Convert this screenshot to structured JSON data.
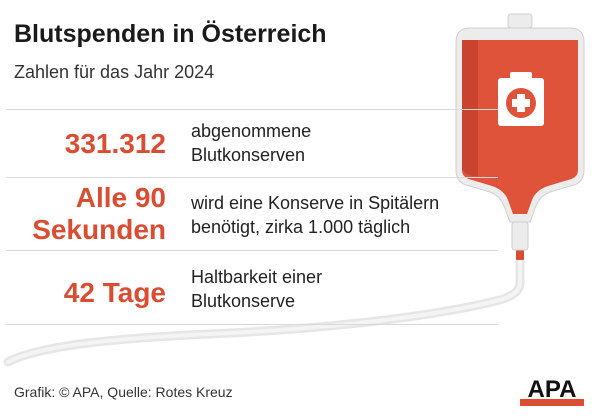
{
  "title": "Blutspenden in Österreich",
  "subtitle": "Zahlen für das Jahr 2024",
  "stats": [
    {
      "value": "331.312",
      "desc_line1": "abgenommene",
      "desc_line2": "Blutkonserven"
    },
    {
      "value_line1": "Alle 90",
      "value_line2": "Sekunden",
      "desc_line1": "wird eine Konserve in Spitälern",
      "desc_line2": "benötigt, zirka 1.000 täglich"
    },
    {
      "value": "42 Tage",
      "desc_line1": "Haltbarkeit einer",
      "desc_line2": "Blutkonserve"
    }
  ],
  "source": "Grafik: © APA, Quelle: Rotes Kreuz",
  "logo": "APA",
  "colors": {
    "accent": "#d94d33",
    "bag_red": "#e0533b",
    "bag_dark": "#a83524",
    "bag_light": "#ececec",
    "tube": "#e6e6e6",
    "text": "#1a1a1a",
    "rule": "#d9d9d9"
  },
  "icons": [
    "blood-bag-icon",
    "first-aid-kit-icon",
    "apa-logo"
  ]
}
